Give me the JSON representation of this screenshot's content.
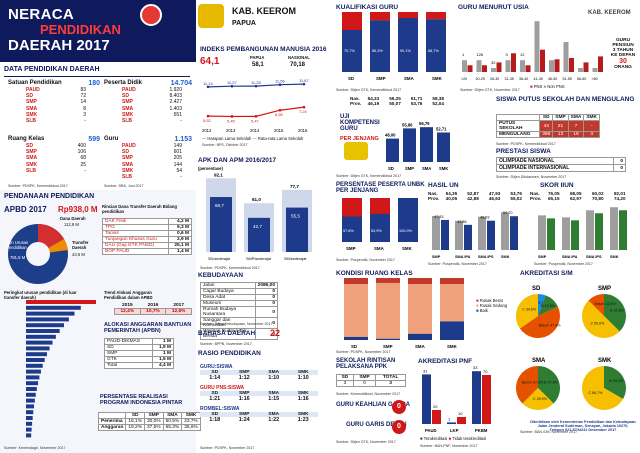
{
  "header": {
    "line1": "NERACA",
    "line2": "PENDIDIKAN",
    "line3": "DAERAH 2017",
    "kab": "KAB. KEEROM",
    "prov": "PAPUA",
    "corner": "KAB. KEEROM"
  },
  "data_pend": {
    "title": "DATA PENDIDIKAN DAERAH",
    "satuan": {
      "label": "Satuan Pendidikan",
      "total": "180",
      "rows": [
        {
          "k": "PAUD",
          "v": "83"
        },
        {
          "k": "SD",
          "v": "72"
        },
        {
          "k": "SMP",
          "v": "14"
        },
        {
          "k": "SMA",
          "v": "8"
        },
        {
          "k": "SMK",
          "v": "3"
        },
        {
          "k": "SLB",
          "v": "-"
        }
      ]
    },
    "peserta": {
      "label": "Peserta Didik",
      "total": "14.704",
      "rows": [
        {
          "k": "PAUD",
          "v": "1.920"
        },
        {
          "k": "SD",
          "v": "8.403"
        },
        {
          "k": "SMP",
          "v": "2.427"
        },
        {
          "k": "SMA",
          "v": "1.403"
        },
        {
          "k": "SMK",
          "v": "551"
        },
        {
          "k": "SLB",
          "v": "-"
        }
      ]
    },
    "ruang": {
      "label": "Ruang Kelas",
      "total": "599",
      "rows": [
        {
          "k": "SD",
          "v": "400"
        },
        {
          "k": "SMP",
          "v": "106"
        },
        {
          "k": "SMA",
          "v": "68"
        },
        {
          "k": "SMK",
          "v": "25"
        },
        {
          "k": "SLB",
          "v": "-"
        }
      ]
    },
    "guru": {
      "label": "Guru",
      "total": "1.153",
      "rows": [
        {
          "k": "PAUD",
          "v": "149"
        },
        {
          "k": "SD",
          "v": "601"
        },
        {
          "k": "SMP",
          "v": "205"
        },
        {
          "k": "SMA",
          "v": "144"
        },
        {
          "k": "SMK",
          "v": "54"
        },
        {
          "k": "SLB",
          "v": "-"
        }
      ]
    },
    "src1": "Sumber: PDSPK, Kemendikbud 2017",
    "src2": "Sumber: DBK, Juni 2017"
  },
  "pendanaan": {
    "title": "PENDANAAN PENDIDIKAN",
    "apbd_label": "APBD 2017",
    "apbd_value": "Rp938,0 M",
    "dana_daerah": "Dana Daerah",
    "dana_daerah_v": "112,9 M",
    "non": "Non Urusan Pendidikan",
    "non_v": "781,5 M",
    "transfer": "Transfer Daerah",
    "transfer_v": "43,6 M",
    "rincian_title": "Rincian Dana Transfer Daerah Bidang pendidikan",
    "rincian": [
      {
        "k": "DAK Fisik",
        "v": "4,2 M"
      },
      {
        "k": "TPG",
        "v": "9,3 M"
      },
      {
        "k": "Tamsil",
        "v": "0,6 M"
      },
      {
        "k": "Tunjangan Khusus Guru",
        "v": "2,9 M"
      },
      {
        "k": "DAU (Gaji GTK PNSD)",
        "v": "25,1 M"
      },
      {
        "k": "BOP PAUD",
        "v": "1,4 M"
      }
    ],
    "trend_title": "Trend Alokasi Anggaran Pendidikan dalam APBD",
    "years": [
      "2015",
      "2016",
      "2017"
    ],
    "trend": [
      "12,4%",
      "10,7%",
      "12,6%"
    ],
    "peringkat": "Peringkat urusan pendidikan (di luar transfer daerah)",
    "bantuan_title": "ALOKASI ANGGARAN BANTUAN PEMERINTAH (APBN)",
    "bantuan": [
      {
        "k": "PAUD-DIKMAS",
        "v": "1 M"
      },
      {
        "k": "SD",
        "v": "1,9 M"
      },
      {
        "k": "SMP",
        "v": "1 M"
      },
      {
        "k": "GTK",
        "v": "1,5 M"
      },
      {
        "k": "Total",
        "v": "4,4 M"
      }
    ],
    "pip_title": "PERSENTASE REALISASI PROGRAM INDONESIA PINTAR",
    "pip_cols": [
      "SD",
      "SMP",
      "SMA",
      "SMK"
    ],
    "pip": [
      {
        "k": "Penerima",
        "v": [
          "18,1%",
          "30,0%",
          "60,5%",
          "23,7%"
        ]
      },
      {
        "k": "Anggaran",
        "v": [
          "19,2%",
          "37,5%",
          "65,3%",
          "35,6%"
        ]
      }
    ],
    "src": "Sumber: Kemendagri, November 2017"
  },
  "ipm": {
    "title": "INDEKS PEMBANGUNAN MANUSIA 2016",
    "v1": "64,1",
    "v1l": "",
    "papua": "PAPUA",
    "papua_v": "58,1",
    "nasional": "NASIONAL",
    "nasional_v": "70,18",
    "hls": [
      "11,14",
      "11,27",
      "11,28",
      "11,56",
      "11,67"
    ],
    "rls": [
      "5,52",
      "5,45",
      "5,47",
      "6,65",
      "7,24"
    ],
    "rls_label": "7,24 Tahun",
    "years": [
      "2012",
      "2013",
      "2014",
      "2015",
      "2016"
    ],
    "leg1": "Harapan Lama Sekolah",
    "leg2": "Rata-rata Lama Sekolah",
    "src": "Sumber: BPS, Oktober 2017"
  },
  "apk": {
    "title": "APK DAN APM 2016/2017",
    "subtitle": "(persentase)",
    "labels": [
      "SD/sederajat",
      "SMP/sederajat",
      "SM/sederajat"
    ],
    "apk": [
      "92,1",
      "61,0",
      "77,7"
    ],
    "apm": [
      "68,7",
      "42,7",
      "55,5"
    ],
    "leg1": "APK",
    "leg2": "APM",
    "src": "Sumber: PDSPK, Kemendikbud 2017"
  },
  "kebudayaan": {
    "title": "KEBUDAYAAN",
    "rows": [
      {
        "k": "Jalan",
        "v": "2086,00"
      },
      {
        "k": "Cagar Budaya",
        "v": "0"
      },
      {
        "k": "Desa Adat",
        "v": "0"
      },
      {
        "k": "Museum",
        "v": "0"
      },
      {
        "k": "Rumah Budaya Nusantara",
        "v": "0"
      },
      {
        "k": "Sanggar dan Komunitas",
        "v": "0"
      },
      {
        "k": "Warisan Budaya Tak Benda",
        "v": "0"
      }
    ],
    "src": "Sumber: Ditjen Kebudayaan, November 2017"
  },
  "bahasa": {
    "title": "BAHASA DAERAH",
    "value": "22",
    "src": "Sumber: BPPB, November 2017"
  },
  "rasio": {
    "title": "RASIO PENDIDIKAN",
    "guru_siswa": "GURU:SISWA",
    "guru_pns": "GURU PNS:SISWA",
    "rombel": "ROMBEL:SISWA",
    "cols": [
      "SD",
      "SMP",
      "SMA",
      "SMK"
    ],
    "gs": [
      "1:14",
      "1:12",
      "1:10",
      "1:10"
    ],
    "gp": [
      "1:21",
      "1:16",
      "1:15",
      "1:16"
    ],
    "rs": [
      "1:18",
      "1:24",
      "1:22",
      "1:23"
    ],
    "src": "Sumber: PDSPK, November 2017"
  },
  "kualifikasi": {
    "title": "KUALIFIKASI GURU",
    "labels": [
      "SD",
      "SMP",
      "SMA",
      "SMK"
    ],
    "s1": [
      "70,7%",
      "86,3%",
      "90,1%",
      "88,7%"
    ],
    "lt": [
      "29,3%",
      "13,7%",
      "9,9%",
      "11,3%"
    ],
    "leg1": "≥ S1/D4",
    "leg2": "< S1/D4",
    "src": "Sumber: Ditjen GTK, Kemendikbud 2017"
  },
  "uji": {
    "title": "UJI KOMPETENSI GURU",
    "sub": "PER JENJANG",
    "rows_lbl": [
      "Nas.",
      "Prov."
    ],
    "nas": [
      "54,33",
      "59,25",
      "61,71",
      "58,38"
    ],
    "prov": [
      "46,19",
      "50,07",
      "53,76",
      "52,04"
    ],
    "vals": [
      "48,00",
      "55,86",
      "56,79",
      "52,71"
    ],
    "labels": [
      "SD",
      "SMP",
      "SMA",
      "SMK"
    ],
    "src": "Sumber: Ditjen GTK, Kemendikbud 2017"
  },
  "usia": {
    "title": "GURU MENURUT USIA",
    "ages": [
      "<20",
      "20-25",
      "26-30",
      "31-35",
      "36-40",
      "41-45",
      "46-50",
      "51-55",
      "56-60",
      ">60"
    ],
    "pns": [
      0,
      0,
      1,
      2,
      0,
      0,
      1,
      0,
      1,
      2
    ],
    "nonpns": [
      3,
      3,
      0,
      3,
      3,
      18,
      3,
      10,
      0,
      0
    ],
    "labels": [
      "1",
      "126",
      "32",
      "3",
      "12",
      "",
      "",
      "",
      "",
      ""
    ],
    "note1": "GURU",
    "note2": "PENSIUN",
    "note3": "3 TAHUN",
    "note4": "KE DEPAN",
    "note_v": "30",
    "note5": "ORANG",
    "leg1": "PNS",
    "leg2": "Non PNS",
    "src": "Sumber: Ditjen GTK, November 2017"
  },
  "putus": {
    "title": "SISWA PUTUS SEKOLAH DAN MENGULANG",
    "cols": [
      "SD",
      "SMP",
      "SMA",
      "SMK"
    ],
    "putus_lbl": "PUTUS SEKOLAH",
    "putus": [
      "43",
      "21",
      "7",
      "-"
    ],
    "ulang_lbl": "MENGULANG",
    "ulang": [
      "398",
      "13",
      "19",
      "3"
    ],
    "src": "Sumber: PDSPK, Kemendikbud 2017"
  },
  "prestasi": {
    "title": "PRESTASI SISWA",
    "items": [
      {
        "k": "OLIMPIADE NASIONAL",
        "v": "0"
      },
      {
        "k": "OLIMPIADE INTERNASIONAL",
        "v": "0"
      }
    ],
    "src": "Sumber: Ditjen Dikdasmen, November 2017"
  },
  "unbk": {
    "title": "PERSENTASE PESERTA UNBK PER JENJANG",
    "labels": [
      "SMP",
      "SMA",
      "SMK"
    ],
    "vals": [
      "57,8%",
      "63,9%",
      "100,0%"
    ],
    "src": "Sumber: Puspendik, November 2017"
  },
  "hasilun": {
    "title": "HASIL UN",
    "rows_lbl": [
      "Nas.",
      "Prov."
    ],
    "nas": [
      "54,35",
      "52,87",
      "47,93",
      "53,76"
    ],
    "prov": [
      "40,05",
      "42,88",
      "46,63",
      "55,02"
    ],
    "labels": [
      "SMP",
      "SMA IPA",
      "SMA IPS",
      "SMK"
    ],
    "vals": [
      "47,33",
      "42,88",
      "46,63",
      "50,70"
    ],
    "leg1": "2016",
    "leg2": "2017",
    "src": "Sumber: Puspendik, November 2017"
  },
  "skoriun": {
    "title": "SKOR IIUN",
    "rows_lbl": [
      "Nas.",
      "Prov."
    ],
    "nas": [
      "76,05",
      "68,05",
      "60,02",
      "82,01"
    ],
    "prov": [
      "65,15",
      "62,97",
      "70,80",
      "74,20"
    ],
    "labels": [
      "SMP",
      "SMA IPA",
      "SMA IPS",
      "SMK"
    ],
    "leg1": "2016",
    "leg2": "2017",
    "src": "Sumber: Puspendik, November 2017"
  },
  "kondisi": {
    "title": "KONDISI RUANG KELAS",
    "labels": [
      "SD",
      "SMP",
      "SMA",
      "SMK"
    ],
    "leg": [
      "Rusak Berat",
      "Rusak Sedang",
      "Baik"
    ],
    "src": "Sumber: PDSPK, November 2017"
  },
  "akreditasi": {
    "title": "AKREDITASI S/M",
    "labels": [
      "SD",
      "SMP",
      "SMA",
      "SMK"
    ],
    "sd": [
      {
        "k": "A",
        "v": "5,7%"
      },
      {
        "k": "B",
        "v": "12,3%"
      },
      {
        "k": "Belum",
        "v": "47,4%"
      },
      {
        "k": "C",
        "v": "34,6%"
      }
    ],
    "smp": [
      {
        "k": "B",
        "v": "37,5%"
      },
      {
        "k": "C",
        "v": "50,0%"
      },
      {
        "k": "Belum",
        "v": "12,5%"
      }
    ],
    "sma": [
      {
        "k": "B",
        "v": "37,5%"
      },
      {
        "k": "C",
        "v": "25,0%"
      },
      {
        "k": "Belum",
        "v": "37,5%"
      }
    ],
    "smk": [
      {
        "k": "B",
        "v": "33,3%"
      },
      {
        "k": "C",
        "v": "66,7%"
      }
    ],
    "src": "Sumber: BAN-S/M, November 2017"
  },
  "rintisan": {
    "title": "SEKOLAH RINTISAN PELAKSANA PPK",
    "cols": [
      "SD",
      "SMP",
      "TOTAL"
    ],
    "vals": [
      "3",
      "0",
      "3"
    ],
    "src": "Sumber: Kemendikbud, November 2017"
  },
  "keahlian": {
    "title": "GURU KEAHLIAN GANDA",
    "value": "0"
  },
  "garis": {
    "title": "GURU GARIS DEPAN",
    "value": "0",
    "src": "Sumber: Ditjen GTK, November 2017"
  },
  "pnf": {
    "title": "AKREDITASI PNF",
    "labels": [
      "PAUD",
      "LKP",
      "PKBM"
    ],
    "t": [
      "31",
      "1",
      "33"
    ],
    "b": [
      "20",
      "10",
      "70"
    ],
    "leg1": "Terakreditasi",
    "leg2": "Tidak terakreditasi",
    "src": "Sumber: BAN-PNF, November 2017"
  },
  "footer": "Diterbitkan oleh Kementerian Pendidikan dan Kebudayaan Jalan Jenderal Sudirman, Senayan, Jakarta 10270, Telepon 021-5734241 Desember 2017"
}
